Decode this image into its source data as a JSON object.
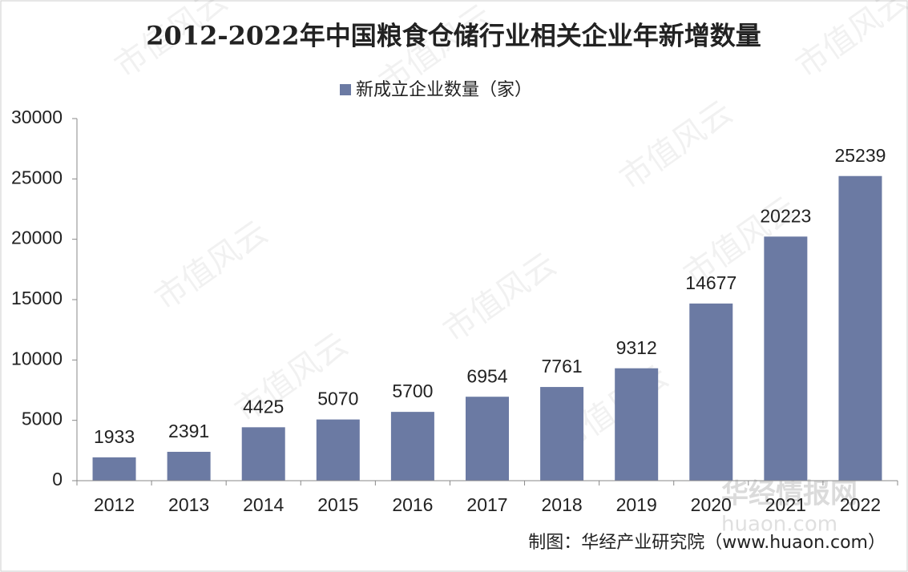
{
  "chart_data": {
    "type": "bar",
    "title": "2012-2022年中国粮食仓储行业相关企业年新增数量",
    "categories": [
      "2012",
      "2013",
      "2014",
      "2015",
      "2016",
      "2017",
      "2018",
      "2019",
      "2020",
      "2021",
      "2022"
    ],
    "series": [
      {
        "name": "新成立企业数量（家）",
        "color": "#6b7aa3",
        "values": [
          1933,
          2391,
          4425,
          5070,
          5700,
          6954,
          7761,
          9312,
          14677,
          20223,
          25239
        ]
      }
    ],
    "ylim": [
      0,
      30000
    ],
    "yticks": [
      0,
      5000,
      10000,
      15000,
      20000,
      25000,
      30000
    ],
    "grid": false,
    "legend": "top",
    "source": "制图：华经产业研究院（www.huaon.com）",
    "watermarks": [
      "市值风云",
      "华经情报网",
      "huaon.com"
    ]
  }
}
